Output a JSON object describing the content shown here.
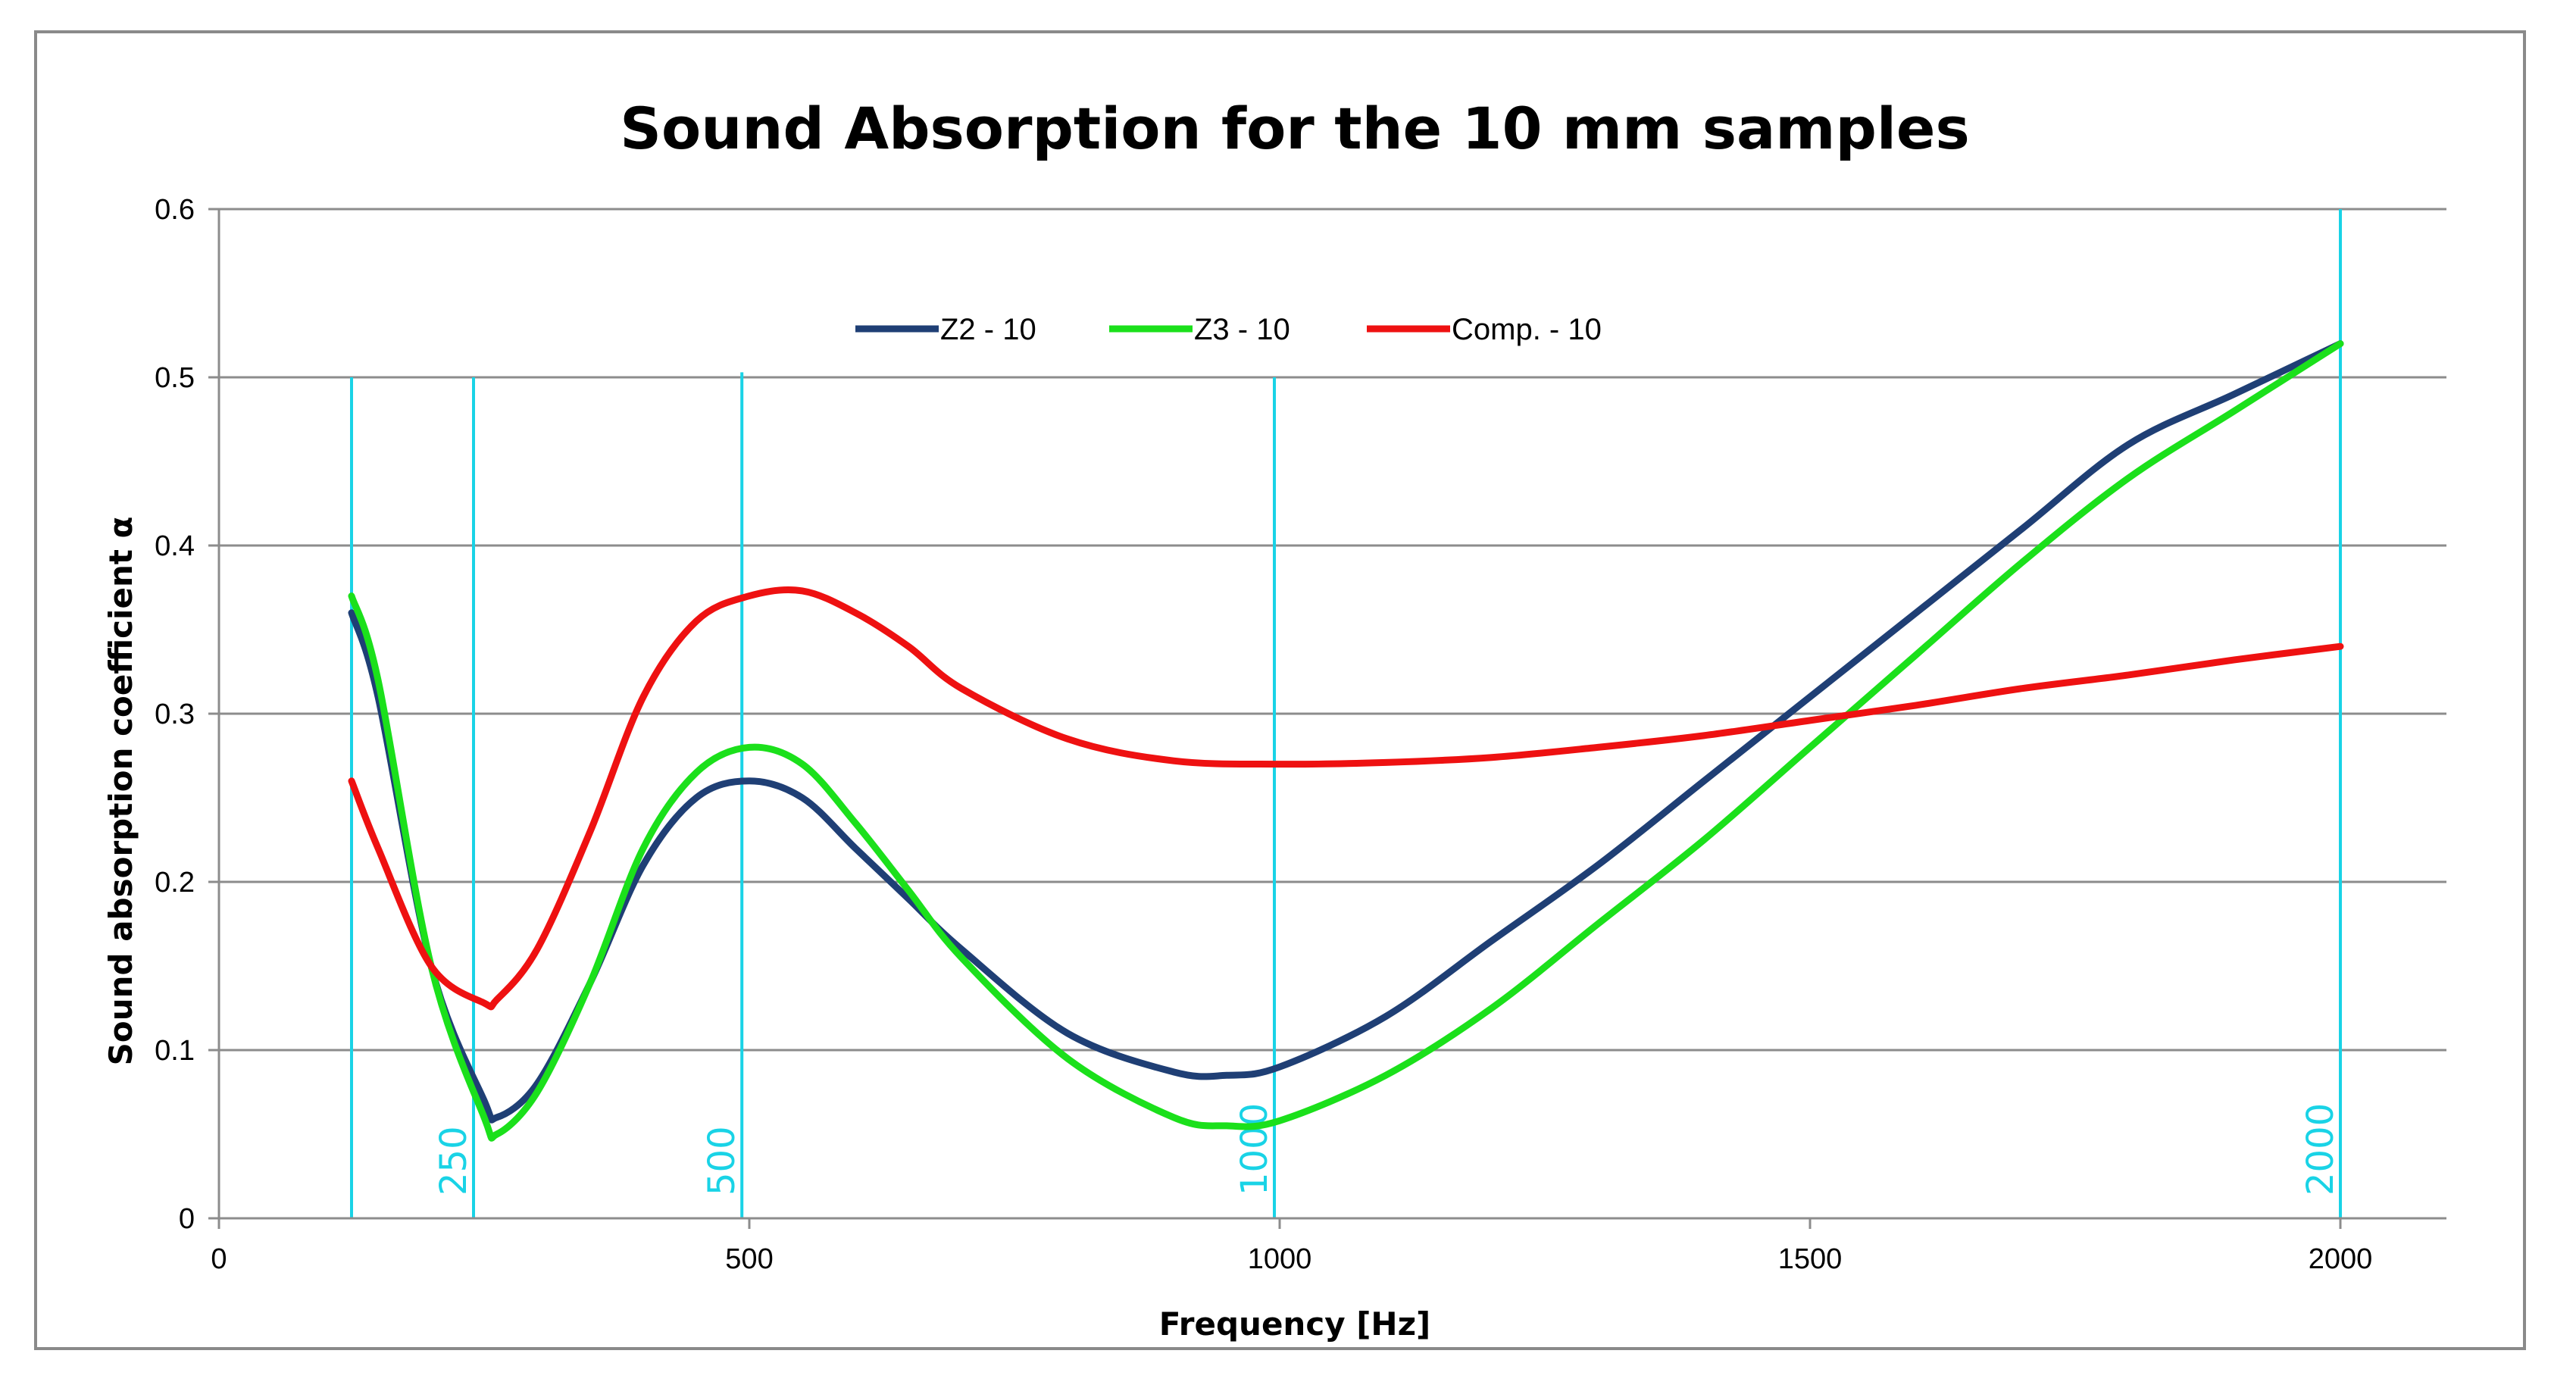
{
  "chart_data": {
    "type": "line",
    "title": "Sound Absorption for the 10 mm samples",
    "xlabel": "Frequency [Hz]",
    "ylabel": "Sound absorption coefficient α",
    "xlim": [
      0,
      2100
    ],
    "ylim": [
      0,
      0.6
    ],
    "x_ticks": [
      "0",
      "500",
      "1000",
      "1500",
      "2000"
    ],
    "x_tick_values": [
      0,
      500,
      1000,
      1500,
      2000
    ],
    "y_ticks": [
      "0",
      "0.1",
      "0.2",
      "0.3",
      "0.4",
      "0.5",
      "0.6"
    ],
    "y_tick_values": [
      0,
      0.1,
      0.2,
      0.3,
      0.4,
      0.5,
      0.6
    ],
    "grid": "horizontal",
    "legend_position": "top-center",
    "series": [
      {
        "name": "Z2 - 10",
        "color": "#1f3f75",
        "x": [
          125,
          150,
          200,
          250,
          262,
          300,
          350,
          400,
          450,
          500,
          550,
          600,
          650,
          700,
          800,
          900,
          950,
          1000,
          1100,
          1200,
          1300,
          1400,
          1500,
          1600,
          1700,
          1800,
          1900,
          2000
        ],
        "y": [
          0.36,
          0.31,
          0.15,
          0.07,
          0.06,
          0.08,
          0.14,
          0.21,
          0.25,
          0.26,
          0.25,
          0.22,
          0.19,
          0.16,
          0.11,
          0.087,
          0.085,
          0.09,
          0.12,
          0.165,
          0.21,
          0.26,
          0.31,
          0.36,
          0.41,
          0.46,
          0.49,
          0.52
        ]
      },
      {
        "name": "Z3 - 10",
        "color": "#1be01b",
        "x": [
          125,
          150,
          200,
          250,
          262,
          300,
          350,
          400,
          450,
          500,
          550,
          600,
          650,
          700,
          800,
          900,
          950,
          1000,
          1100,
          1200,
          1300,
          1400,
          1500,
          1600,
          1700,
          1800,
          1900,
          2000
        ],
        "y": [
          0.37,
          0.32,
          0.15,
          0.06,
          0.05,
          0.075,
          0.14,
          0.22,
          0.265,
          0.28,
          0.27,
          0.235,
          0.195,
          0.155,
          0.095,
          0.06,
          0.055,
          0.058,
          0.085,
          0.125,
          0.175,
          0.225,
          0.28,
          0.335,
          0.39,
          0.44,
          0.48,
          0.52
        ]
      },
      {
        "name": "Comp. - 10",
        "color": "#ee1111",
        "x": [
          125,
          150,
          200,
          250,
          262,
          300,
          350,
          400,
          450,
          500,
          550,
          600,
          650,
          700,
          800,
          900,
          1000,
          1100,
          1200,
          1300,
          1400,
          1500,
          1600,
          1700,
          1800,
          1900,
          2000
        ],
        "y": [
          0.26,
          0.22,
          0.15,
          0.128,
          0.13,
          0.16,
          0.23,
          0.31,
          0.355,
          0.37,
          0.373,
          0.36,
          0.34,
          0.315,
          0.285,
          0.272,
          0.27,
          0.271,
          0.274,
          0.28,
          0.287,
          0.296,
          0.305,
          0.315,
          0.323,
          0.332,
          0.34
        ]
      }
    ],
    "reference_lines": [
      {
        "x": 125,
        "top": 0.5,
        "label": ""
      },
      {
        "x": 240,
        "top": 0.5,
        "label": "250"
      },
      {
        "x": 493,
        "top": 0.503,
        "label": "500"
      },
      {
        "x": 995,
        "top": 0.5,
        "label": "1000"
      },
      {
        "x": 2000,
        "top": 0.6,
        "label": "2000"
      }
    ],
    "reference_color": "#19d3e6"
  }
}
